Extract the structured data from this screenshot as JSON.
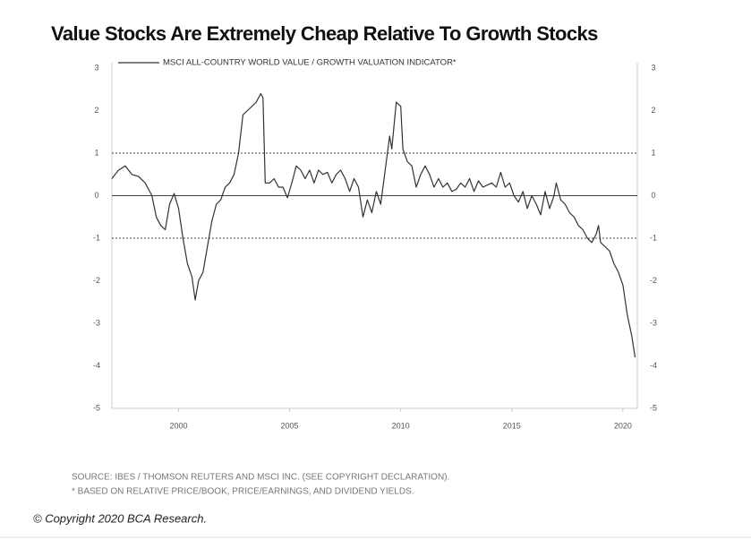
{
  "chart_data": {
    "type": "line",
    "title": "Value Stocks Are Extremely Cheap Relative To Growth Stocks",
    "series": [
      {
        "name": "MSCI ALL-COUNTRY WORLD VALUE / GROWTH VALUATION INDICATOR*",
        "color": "#333333",
        "x": [
          1997.0,
          1997.3,
          1997.6,
          1997.9,
          1998.2,
          1998.5,
          1998.8,
          1999.0,
          1999.2,
          1999.4,
          1999.6,
          1999.8,
          2000.0,
          2000.2,
          2000.4,
          2000.6,
          2000.75,
          2000.9,
          2001.1,
          2001.3,
          2001.5,
          2001.7,
          2001.9,
          2002.1,
          2002.3,
          2002.5,
          2002.7,
          2002.9,
          2003.1,
          2003.3,
          2003.5,
          2003.7,
          2003.8,
          2003.9,
          2004.1,
          2004.3,
          2004.5,
          2004.7,
          2004.9,
          2005.1,
          2005.3,
          2005.5,
          2005.7,
          2005.9,
          2006.1,
          2006.3,
          2006.5,
          2006.7,
          2006.9,
          2007.1,
          2007.3,
          2007.5,
          2007.7,
          2007.9,
          2008.1,
          2008.3,
          2008.5,
          2008.7,
          2008.9,
          2009.1,
          2009.3,
          2009.5,
          2009.6,
          2009.8,
          2010.0,
          2010.1,
          2010.3,
          2010.5,
          2010.7,
          2010.9,
          2011.1,
          2011.3,
          2011.5,
          2011.7,
          2011.9,
          2012.1,
          2012.3,
          2012.5,
          2012.7,
          2012.9,
          2013.1,
          2013.3,
          2013.5,
          2013.7,
          2013.9,
          2014.1,
          2014.3,
          2014.5,
          2014.7,
          2014.9,
          2015.1,
          2015.3,
          2015.5,
          2015.7,
          2015.9,
          2016.1,
          2016.3,
          2016.5,
          2016.7,
          2016.9,
          2017.0,
          2017.2,
          2017.4,
          2017.6,
          2017.8,
          2018.0,
          2018.2,
          2018.4,
          2018.6,
          2018.8,
          2018.9,
          2019.0,
          2019.2,
          2019.4,
          2019.6,
          2019.8,
          2020.0,
          2020.2,
          2020.4,
          2020.55
        ],
        "values": [
          0.4,
          0.6,
          0.7,
          0.5,
          0.45,
          0.3,
          0.0,
          -0.5,
          -0.7,
          -0.8,
          -0.2,
          0.05,
          -0.3,
          -1.0,
          -1.6,
          -1.9,
          -2.45,
          -2.0,
          -1.8,
          -1.2,
          -0.6,
          -0.2,
          -0.1,
          0.2,
          0.3,
          0.5,
          1.0,
          1.9,
          2.0,
          2.1,
          2.2,
          2.4,
          2.3,
          0.3,
          0.3,
          0.4,
          0.2,
          0.2,
          -0.05,
          0.3,
          0.7,
          0.6,
          0.4,
          0.6,
          0.3,
          0.6,
          0.5,
          0.55,
          0.3,
          0.5,
          0.6,
          0.4,
          0.1,
          0.4,
          0.2,
          -0.5,
          -0.1,
          -0.4,
          0.1,
          -0.2,
          0.6,
          1.4,
          1.1,
          2.2,
          2.1,
          1.1,
          0.8,
          0.7,
          0.2,
          0.5,
          0.7,
          0.5,
          0.2,
          0.4,
          0.2,
          0.3,
          0.1,
          0.15,
          0.3,
          0.2,
          0.4,
          0.1,
          0.35,
          0.2,
          0.25,
          0.3,
          0.2,
          0.55,
          0.2,
          0.3,
          0.0,
          -0.15,
          0.1,
          -0.3,
          0.0,
          -0.2,
          -0.45,
          0.1,
          -0.3,
          0.0,
          0.3,
          -0.1,
          -0.2,
          -0.4,
          -0.5,
          -0.7,
          -0.8,
          -1.0,
          -1.1,
          -0.9,
          -0.7,
          -1.1,
          -1.2,
          -1.3,
          -1.6,
          -1.8,
          -2.1,
          -2.8,
          -3.3,
          -3.8
        ]
      }
    ],
    "xlim": [
      1997.0,
      2020.65
    ],
    "xticks": [
      2000,
      2005,
      2010,
      2015,
      2020
    ],
    "ylim": [
      -5,
      3
    ],
    "yticks": [
      -5,
      -4,
      -3,
      -2,
      -1,
      0,
      1,
      2,
      3
    ],
    "reference_lines": [
      {
        "value": 1,
        "style": "dashed"
      },
      {
        "value": 0,
        "style": "solid"
      },
      {
        "value": -1,
        "style": "dashed"
      }
    ],
    "notes": [
      "SOURCE: IBES / THOMSON REUTERS AND MSCI INC. (SEE COPYRIGHT DECLARATION).",
      "* BASED ON RELATIVE PRICE/BOOK, PRICE/EARNINGS, AND DIVIDEND YIELDS."
    ],
    "copyright": "© Copyright 2020 BCA Research."
  }
}
